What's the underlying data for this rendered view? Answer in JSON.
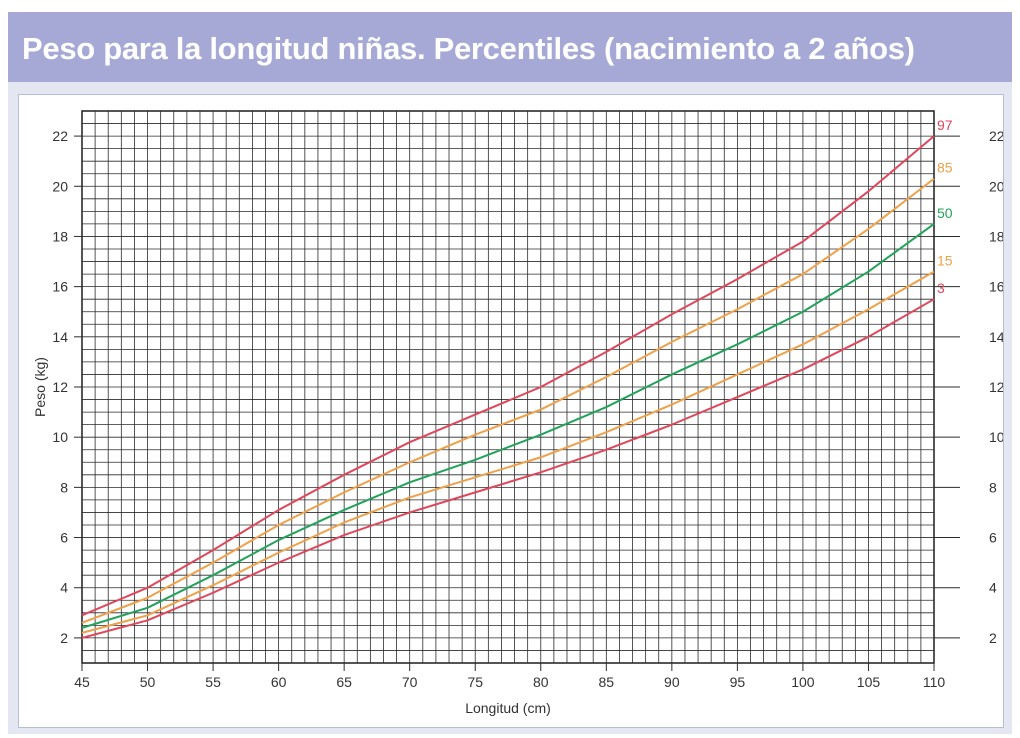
{
  "page": {
    "title": "Peso para la longitud niñas. Percentiles (nacimiento a 2 años)"
  },
  "colors": {
    "title_bar": "#a6a9d6",
    "frame": "#e4e6f1",
    "grid": "#2b2b2b",
    "p97": "#e0475a",
    "p85": "#f0a048",
    "p50": "#22a35b",
    "p15": "#f0a048",
    "p3": "#e0475a"
  },
  "chart_data": {
    "type": "line",
    "xlabel": "Longitud (cm)",
    "ylabel": "Peso (kg)",
    "xlim": [
      45,
      110
    ],
    "ylim": [
      1,
      23
    ],
    "x_ticks": [
      45,
      50,
      55,
      60,
      65,
      70,
      75,
      80,
      85,
      90,
      95,
      100,
      105,
      110
    ],
    "y_ticks": [
      2,
      4,
      6,
      8,
      10,
      12,
      14,
      16,
      18,
      20,
      22
    ],
    "grid": true,
    "x": [
      45,
      50,
      55,
      60,
      65,
      70,
      75,
      80,
      85,
      90,
      95,
      100,
      105,
      110
    ],
    "series": [
      {
        "name": "97",
        "color": "#e0475a",
        "values": [
          2.9,
          4.0,
          5.5,
          7.1,
          8.5,
          9.8,
          10.9,
          12.0,
          13.4,
          14.9,
          16.3,
          17.8,
          19.8,
          22.0
        ]
      },
      {
        "name": "85",
        "color": "#f0a048",
        "values": [
          2.6,
          3.6,
          5.0,
          6.5,
          7.8,
          9.0,
          10.1,
          11.1,
          12.4,
          13.8,
          15.1,
          16.5,
          18.3,
          20.3
        ]
      },
      {
        "name": "50",
        "color": "#22a35b",
        "values": [
          2.4,
          3.2,
          4.5,
          5.9,
          7.1,
          8.2,
          9.1,
          10.1,
          11.2,
          12.5,
          13.7,
          15.0,
          16.6,
          18.5
        ]
      },
      {
        "name": "15",
        "color": "#f0a048",
        "values": [
          2.2,
          2.9,
          4.1,
          5.4,
          6.6,
          7.6,
          8.4,
          9.2,
          10.2,
          11.3,
          12.5,
          13.7,
          15.1,
          16.6
        ]
      },
      {
        "name": "3",
        "color": "#e0475a",
        "values": [
          2.0,
          2.7,
          3.8,
          5.0,
          6.1,
          7.0,
          7.8,
          8.6,
          9.5,
          10.5,
          11.6,
          12.7,
          14.0,
          15.5
        ]
      }
    ]
  }
}
